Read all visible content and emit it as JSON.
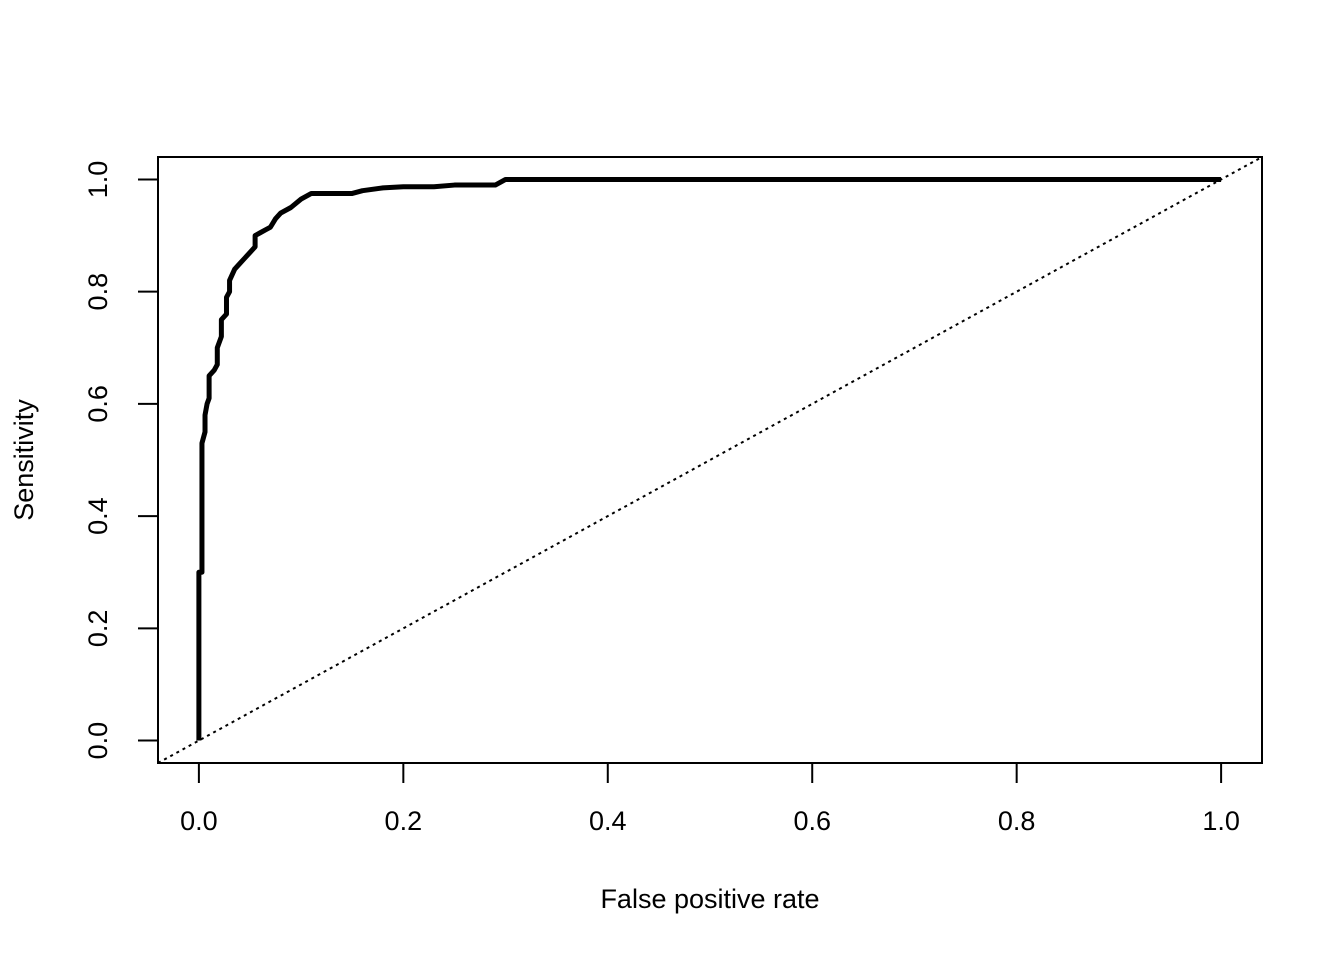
{
  "chart_data": {
    "type": "line",
    "xlabel": "False positive rate",
    "ylabel": "Sensitivity",
    "color": "#000000",
    "diagonal_reference": true,
    "x": [
      0,
      0,
      0.003,
      0.003,
      0.006,
      0.006,
      0.008,
      0.01,
      0.01,
      0.015,
      0.018,
      0.018,
      0.022,
      0.022,
      0.027,
      0.027,
      0.03,
      0.03,
      0.035,
      0.04,
      0.045,
      0.05,
      0.055,
      0.055,
      0.06,
      0.065,
      0.07,
      0.075,
      0.08,
      0.09,
      0.1,
      0.11,
      0.15,
      0.16,
      0.18,
      0.2,
      0.23,
      0.25,
      0.29,
      0.3,
      1
    ],
    "values": [
      0,
      0.3,
      0.3,
      0.53,
      0.55,
      0.58,
      0.6,
      0.61,
      0.65,
      0.66,
      0.67,
      0.7,
      0.72,
      0.75,
      0.76,
      0.79,
      0.8,
      0.82,
      0.84,
      0.85,
      0.86,
      0.87,
      0.88,
      0.9,
      0.905,
      0.91,
      0.915,
      0.93,
      0.94,
      0.95,
      0.965,
      0.975,
      0.975,
      0.98,
      0.985,
      0.987,
      0.987,
      0.99,
      0.99,
      1.0,
      1.0
    ],
    "xlim": [
      -0.04,
      1.04
    ],
    "ylim": [
      -0.04,
      1.04
    ],
    "xticks": [
      {
        "value": 0,
        "label": "0.0"
      },
      0.2,
      0.4,
      0.6,
      0.8,
      {
        "value": 1,
        "label": "1.0"
      }
    ],
    "yticks": [
      {
        "value": 0,
        "label": "0.0"
      },
      0.2,
      0.4,
      0.6,
      0.8,
      {
        "value": 1,
        "label": "1.0"
      }
    ]
  }
}
